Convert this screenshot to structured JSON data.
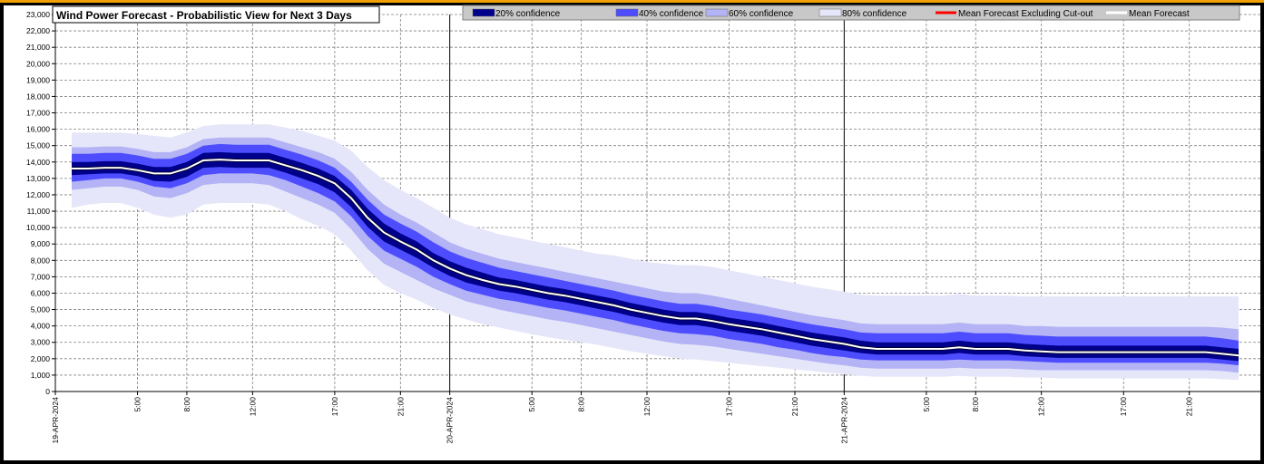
{
  "chart_data": {
    "type": "area",
    "title": "Wind Power Forecast - Probabilistic View for Next 3 Days",
    "xlabel": "",
    "ylabel": "",
    "ylim": [
      0,
      23000
    ],
    "yticks": [
      0,
      1000,
      2000,
      3000,
      4000,
      5000,
      6000,
      7000,
      8000,
      9000,
      10000,
      11000,
      12000,
      13000,
      14000,
      15000,
      16000,
      17000,
      18000,
      19000,
      20000,
      21000,
      22000,
      23000
    ],
    "ytick_labels": [
      "0",
      "1,000",
      "2,000",
      "3,000",
      "4,000",
      "5,000",
      "6,000",
      "7,000",
      "8,000",
      "9,000",
      "10,000",
      "11,000",
      "12,000",
      "13,000",
      "14,000",
      "15,000",
      "16,000",
      "17,000",
      "18,000",
      "19,000",
      "20,000",
      "21,000",
      "22,000",
      "23,000"
    ],
    "xlim_hours": [
      0,
      72
    ],
    "xticks": [
      {
        "hour": 0,
        "label": "19-APR-2024",
        "major": true
      },
      {
        "hour": 5,
        "label": "5:00",
        "major": false
      },
      {
        "hour": 8,
        "label": "8:00",
        "major": false
      },
      {
        "hour": 12,
        "label": "12:00",
        "major": false
      },
      {
        "hour": 17,
        "label": "17:00",
        "major": false
      },
      {
        "hour": 21,
        "label": "21:00",
        "major": false
      },
      {
        "hour": 24,
        "label": "20-APR-2024",
        "major": true
      },
      {
        "hour": 29,
        "label": "5:00",
        "major": false
      },
      {
        "hour": 32,
        "label": "8:00",
        "major": false
      },
      {
        "hour": 36,
        "label": "12:00",
        "major": false
      },
      {
        "hour": 41,
        "label": "17:00",
        "major": false
      },
      {
        "hour": 45,
        "label": "21:00",
        "major": false
      },
      {
        "hour": 48,
        "label": "21-APR-2024",
        "major": true
      },
      {
        "hour": 53,
        "label": "5:00",
        "major": false
      },
      {
        "hour": 56,
        "label": "8:00",
        "major": false
      },
      {
        "hour": 60,
        "label": "12:00",
        "major": false
      },
      {
        "hour": 65,
        "label": "17:00",
        "major": false
      },
      {
        "hour": 69,
        "label": "21:00",
        "major": false
      }
    ],
    "grid": true,
    "legend_position": "top",
    "legend": [
      {
        "label": "20% confidence",
        "kind": "box",
        "color": "#00008b"
      },
      {
        "label": "40% confidence",
        "kind": "box",
        "color": "#4d4dff"
      },
      {
        "label": "60% confidence",
        "kind": "box",
        "color": "#b3b3f5"
      },
      {
        "label": "80% confidence",
        "kind": "box",
        "color": "#e6e6fa"
      },
      {
        "label": "Mean Forecast Excluding Cut-out",
        "kind": "line",
        "color": "#ff0000"
      },
      {
        "label": "Mean Forecast",
        "kind": "line",
        "color": "#ffffff"
      }
    ],
    "x_hours": [
      1,
      2,
      3,
      4,
      5,
      6,
      7,
      8,
      9,
      10,
      11,
      12,
      13,
      14,
      15,
      16,
      17,
      18,
      19,
      20,
      21,
      22,
      23,
      24,
      25,
      26,
      27,
      28,
      29,
      30,
      31,
      32,
      33,
      34,
      35,
      36,
      37,
      38,
      39,
      40,
      41,
      42,
      43,
      44,
      45,
      46,
      47,
      48,
      49,
      50,
      51,
      52,
      53,
      54,
      55,
      56,
      57,
      58,
      59,
      60,
      61,
      62,
      63,
      64,
      65,
      66,
      67,
      68,
      69,
      70,
      71,
      72
    ],
    "mean_forecast": [
      13600,
      13600,
      13650,
      13650,
      13500,
      13300,
      13300,
      13600,
      14100,
      14150,
      14100,
      14100,
      14100,
      13800,
      13500,
      13150,
      12700,
      11800,
      10600,
      9700,
      9150,
      8650,
      8000,
      7500,
      7100,
      6800,
      6550,
      6400,
      6200,
      6000,
      5850,
      5650,
      5450,
      5250,
      5000,
      4800,
      4600,
      4450,
      4450,
      4300,
      4100,
      3950,
      3800,
      3600,
      3400,
      3200,
      3050,
      2900,
      2700,
      2600,
      2600,
      2600,
      2600,
      2600,
      2700,
      2600,
      2600,
      2600,
      2500,
      2450,
      2400,
      2400,
      2400,
      2400,
      2400,
      2400,
      2400,
      2400,
      2400,
      2400,
      2300,
      2200
    ],
    "series": [
      {
        "name": "80% confidence",
        "lower": [
          11200,
          11400,
          11500,
          11500,
          11200,
          10800,
          10600,
          10800,
          11400,
          11500,
          11500,
          11500,
          11400,
          11000,
          10500,
          10100,
          9600,
          8600,
          7400,
          6500,
          6000,
          5600,
          5100,
          4700,
          4400,
          4100,
          3900,
          3700,
          3500,
          3300,
          3150,
          3000,
          2850,
          2650,
          2450,
          2300,
          2150,
          2000,
          1950,
          1850,
          1750,
          1650,
          1550,
          1450,
          1350,
          1250,
          1150,
          1050,
          950,
          900,
          900,
          900,
          900,
          900,
          950,
          900,
          900,
          900,
          850,
          850,
          800,
          800,
          800,
          800,
          800,
          800,
          800,
          800,
          800,
          800,
          750,
          700
        ],
        "upper": [
          15800,
          15800,
          15800,
          15800,
          15700,
          15600,
          15500,
          15800,
          16200,
          16300,
          16300,
          16300,
          16300,
          16100,
          15900,
          15600,
          15300,
          14700,
          13700,
          12900,
          12300,
          11800,
          11200,
          10600,
          10200,
          9900,
          9600,
          9400,
          9200,
          9000,
          8800,
          8600,
          8400,
          8300,
          8100,
          7900,
          7800,
          7700,
          7700,
          7600,
          7400,
          7200,
          7000,
          6800,
          6600,
          6400,
          6250,
          6100,
          5900,
          5850,
          5850,
          5850,
          5850,
          5850,
          5950,
          5850,
          5850,
          5850,
          5800,
          5800,
          5800,
          5800,
          5800,
          5800,
          5800,
          5800,
          5800,
          5800,
          5800,
          5800,
          5800,
          5800
        ]
      },
      {
        "name": "60% confidence",
        "lower": [
          12300,
          12400,
          12500,
          12500,
          12300,
          11900,
          11800,
          12100,
          12600,
          12700,
          12700,
          12700,
          12600,
          12200,
          11800,
          11400,
          10900,
          9900,
          8700,
          7800,
          7300,
          6800,
          6300,
          5900,
          5500,
          5250,
          5000,
          4800,
          4600,
          4400,
          4250,
          4050,
          3850,
          3650,
          3450,
          3250,
          3050,
          2900,
          2850,
          2750,
          2600,
          2450,
          2300,
          2150,
          2000,
          1850,
          1700,
          1600,
          1450,
          1400,
          1400,
          1400,
          1400,
          1400,
          1450,
          1400,
          1400,
          1400,
          1350,
          1300,
          1300,
          1300,
          1300,
          1300,
          1300,
          1300,
          1300,
          1300,
          1300,
          1300,
          1250,
          1150
        ],
        "upper": [
          14900,
          14900,
          14950,
          14950,
          14800,
          14600,
          14600,
          14900,
          15400,
          15500,
          15500,
          15500,
          15500,
          15200,
          14900,
          14600,
          14200,
          13400,
          12300,
          11400,
          10800,
          10300,
          9700,
          9100,
          8700,
          8400,
          8100,
          7900,
          7700,
          7500,
          7300,
          7100,
          6900,
          6700,
          6500,
          6300,
          6100,
          6000,
          6000,
          5850,
          5650,
          5450,
          5250,
          5050,
          4850,
          4650,
          4500,
          4350,
          4150,
          4100,
          4100,
          4100,
          4100,
          4100,
          4200,
          4100,
          4100,
          4100,
          4000,
          4000,
          3950,
          3950,
          3950,
          3950,
          3950,
          3950,
          3950,
          3950,
          3950,
          3950,
          3900,
          3800
        ]
      },
      {
        "name": "40% confidence",
        "lower": [
          12800,
          12900,
          13000,
          13000,
          12800,
          12500,
          12400,
          12700,
          13200,
          13300,
          13300,
          13300,
          13200,
          12900,
          12500,
          12100,
          11600,
          10700,
          9500,
          8600,
          8100,
          7600,
          7000,
          6550,
          6150,
          5900,
          5650,
          5500,
          5300,
          5100,
          4950,
          4750,
          4550,
          4350,
          4100,
          3900,
          3700,
          3550,
          3500,
          3400,
          3200,
          3050,
          2900,
          2700,
          2550,
          2350,
          2200,
          2100,
          1950,
          1900,
          1900,
          1900,
          1900,
          1900,
          1950,
          1900,
          1900,
          1900,
          1850,
          1800,
          1750,
          1750,
          1750,
          1750,
          1750,
          1750,
          1750,
          1750,
          1750,
          1750,
          1700,
          1600
        ],
        "upper": [
          14500,
          14500,
          14550,
          14550,
          14400,
          14200,
          14200,
          14500,
          15000,
          15100,
          15050,
          15050,
          15050,
          14750,
          14450,
          14100,
          13650,
          12800,
          11700,
          10800,
          10250,
          9750,
          9100,
          8550,
          8150,
          7850,
          7550,
          7350,
          7150,
          6950,
          6750,
          6550,
          6350,
          6150,
          5900,
          5700,
          5500,
          5350,
          5350,
          5200,
          5000,
          4850,
          4700,
          4500,
          4300,
          4100,
          3950,
          3800,
          3600,
          3550,
          3550,
          3550,
          3550,
          3550,
          3650,
          3550,
          3550,
          3550,
          3450,
          3400,
          3350,
          3350,
          3350,
          3350,
          3350,
          3350,
          3350,
          3350,
          3350,
          3350,
          3250,
          3100
        ]
      },
      {
        "name": "20% confidence",
        "lower": [
          13200,
          13250,
          13300,
          13300,
          13150,
          12850,
          12800,
          13100,
          13650,
          13700,
          13650,
          13650,
          13650,
          13350,
          13000,
          12650,
          12150,
          11250,
          10050,
          9150,
          8650,
          8150,
          7550,
          7050,
          6650,
          6400,
          6150,
          6000,
          5800,
          5600,
          5450,
          5250,
          5050,
          4850,
          4600,
          4400,
          4200,
          4050,
          4050,
          3900,
          3700,
          3550,
          3400,
          3200,
          3000,
          2800,
          2650,
          2500,
          2350,
          2250,
          2250,
          2250,
          2250,
          2250,
          2350,
          2250,
          2250,
          2250,
          2150,
          2100,
          2050,
          2050,
          2050,
          2050,
          2050,
          2050,
          2050,
          2050,
          2050,
          2050,
          1950,
          1850
        ],
        "upper": [
          14000,
          14000,
          14050,
          14050,
          13900,
          13700,
          13700,
          14000,
          14550,
          14600,
          14550,
          14550,
          14550,
          14250,
          13950,
          13600,
          13150,
          12300,
          11150,
          10250,
          9650,
          9150,
          8450,
          7950,
          7550,
          7250,
          6950,
          6800,
          6600,
          6400,
          6250,
          6050,
          5850,
          5650,
          5400,
          5200,
          5000,
          4850,
          4850,
          4700,
          4500,
          4350,
          4200,
          4000,
          3800,
          3600,
          3450,
          3300,
          3100,
          3000,
          3000,
          3000,
          3000,
          3000,
          3100,
          3000,
          3000,
          3000,
          2900,
          2850,
          2800,
          2800,
          2800,
          2800,
          2800,
          2800,
          2800,
          2800,
          2800,
          2800,
          2700,
          2600
        ]
      }
    ],
    "colors": {
      "band_80": "#e6e6fa",
      "band_60": "#b3b3f5",
      "band_40": "#4d4dff",
      "band_20": "#00008b",
      "mean_line": "#ffffff",
      "mean_line_edge": "#000033",
      "grid": "#808080",
      "plot_bg": "#ffffff",
      "frame_bg": "#000000"
    }
  }
}
